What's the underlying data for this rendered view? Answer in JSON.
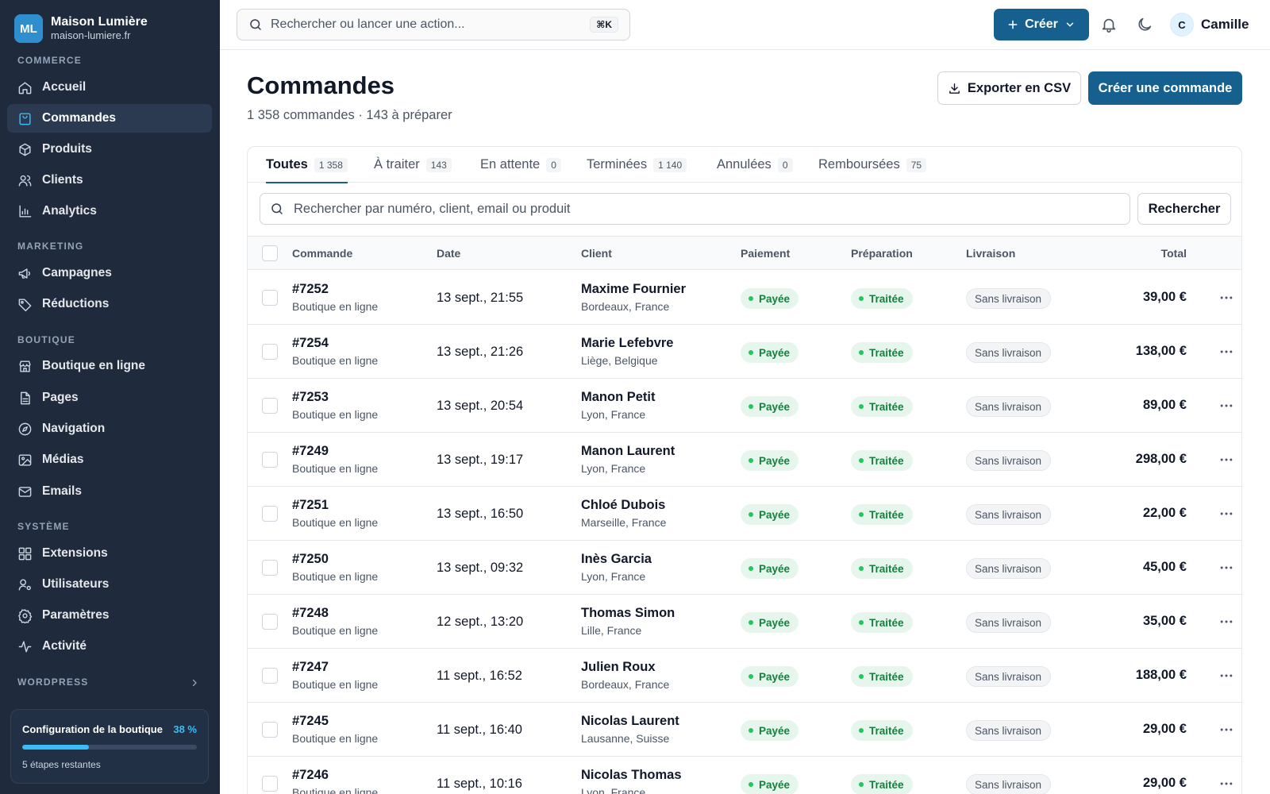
{
  "brand": {
    "initials": "ML",
    "name": "Maison Lumière",
    "domain": "maison-lumiere.fr"
  },
  "sidebar": {
    "sections": {
      "commerce": "COMMERCE",
      "marketing": "MARKETING",
      "boutique": "BOUTIQUE",
      "systeme": "SYSTÈME",
      "wordpress": "WORDPRESS"
    },
    "items": {
      "accueil": "Accueil",
      "commandes": "Commandes",
      "produits": "Produits",
      "clients": "Clients",
      "analytics": "Analytics",
      "campagnes": "Campagnes",
      "reductions": "Réductions",
      "boutique_en_ligne": "Boutique en ligne",
      "pages": "Pages",
      "navigation": "Navigation",
      "medias": "Médias",
      "emails": "Emails",
      "extensions": "Extensions",
      "utilisateurs": "Utilisateurs",
      "parametres": "Paramètres",
      "activite": "Activité"
    },
    "setup": {
      "title": "Configuration de la boutique",
      "percent_label": "38 %",
      "progress": 0.38,
      "steps": "5 étapes restantes"
    }
  },
  "topbar": {
    "search_placeholder": "Rechercher ou lancer une action...",
    "shortcut": "⌘K",
    "create_label": "Créer",
    "user_initial": "C",
    "user_name": "Camille"
  },
  "page": {
    "title": "Commandes",
    "subtitle": "1 358 commandes · 143 à préparer",
    "export_label": "Exporter en CSV",
    "create_order_label": "Créer une commande"
  },
  "tabs": [
    {
      "label": "Toutes",
      "count": "1 358"
    },
    {
      "label": "À traiter",
      "count": "143"
    },
    {
      "label": "En attente",
      "count": "0"
    },
    {
      "label": "Terminées",
      "count": "1 140"
    },
    {
      "label": "Annulées",
      "count": "0"
    },
    {
      "label": "Remboursées",
      "count": "75"
    }
  ],
  "order_search": {
    "placeholder": "Rechercher par numéro, client, email ou produit",
    "button": "Rechercher"
  },
  "table": {
    "columns": {
      "order": "Commande",
      "date": "Date",
      "client": "Client",
      "payment": "Paiement",
      "prep": "Préparation",
      "delivery": "Livraison",
      "total": "Total"
    },
    "rows": [
      {
        "num": "#7252",
        "channel": "Boutique en ligne",
        "date": "13 sept., 21:55",
        "client": "Maxime Fournier",
        "location": "Bordeaux, France",
        "payment": "Payée",
        "prep": "Traitée",
        "delivery": "Sans livraison",
        "total": "39,00 €"
      },
      {
        "num": "#7254",
        "channel": "Boutique en ligne",
        "date": "13 sept., 21:26",
        "client": "Marie Lefebvre",
        "location": "Liège, Belgique",
        "payment": "Payée",
        "prep": "Traitée",
        "delivery": "Sans livraison",
        "total": "138,00 €"
      },
      {
        "num": "#7253",
        "channel": "Boutique en ligne",
        "date": "13 sept., 20:54",
        "client": "Manon Petit",
        "location": "Lyon, France",
        "payment": "Payée",
        "prep": "Traitée",
        "delivery": "Sans livraison",
        "total": "89,00 €"
      },
      {
        "num": "#7249",
        "channel": "Boutique en ligne",
        "date": "13 sept., 19:17",
        "client": "Manon Laurent",
        "location": "Lyon, France",
        "payment": "Payée",
        "prep": "Traitée",
        "delivery": "Sans livraison",
        "total": "298,00 €"
      },
      {
        "num": "#7251",
        "channel": "Boutique en ligne",
        "date": "13 sept., 16:50",
        "client": "Chloé Dubois",
        "location": "Marseille, France",
        "payment": "Payée",
        "prep": "Traitée",
        "delivery": "Sans livraison",
        "total": "22,00 €"
      },
      {
        "num": "#7250",
        "channel": "Boutique en ligne",
        "date": "13 sept., 09:32",
        "client": "Inès Garcia",
        "location": "Lyon, France",
        "payment": "Payée",
        "prep": "Traitée",
        "delivery": "Sans livraison",
        "total": "45,00 €"
      },
      {
        "num": "#7248",
        "channel": "Boutique en ligne",
        "date": "12 sept., 13:20",
        "client": "Thomas Simon",
        "location": "Lille, France",
        "payment": "Payée",
        "prep": "Traitée",
        "delivery": "Sans livraison",
        "total": "35,00 €"
      },
      {
        "num": "#7247",
        "channel": "Boutique en ligne",
        "date": "11 sept., 16:52",
        "client": "Julien Roux",
        "location": "Bordeaux, France",
        "payment": "Payée",
        "prep": "Traitée",
        "delivery": "Sans livraison",
        "total": "188,00 €"
      },
      {
        "num": "#7245",
        "channel": "Boutique en ligne",
        "date": "11 sept., 16:40",
        "client": "Nicolas Laurent",
        "location": "Lausanne, Suisse",
        "payment": "Payée",
        "prep": "Traitée",
        "delivery": "Sans livraison",
        "total": "29,00 €"
      },
      {
        "num": "#7246",
        "channel": "Boutique en ligne",
        "date": "11 sept., 10:16",
        "client": "Nicolas Thomas",
        "location": "Lyon, France",
        "payment": "Payée",
        "prep": "Traitée",
        "delivery": "Sans livraison",
        "total": "29,00 €"
      }
    ]
  },
  "colors": {
    "sidebar_bg": "#1f2b3d",
    "accent": "#15608e",
    "success": "#15803d",
    "progress": "#38bdf8"
  }
}
